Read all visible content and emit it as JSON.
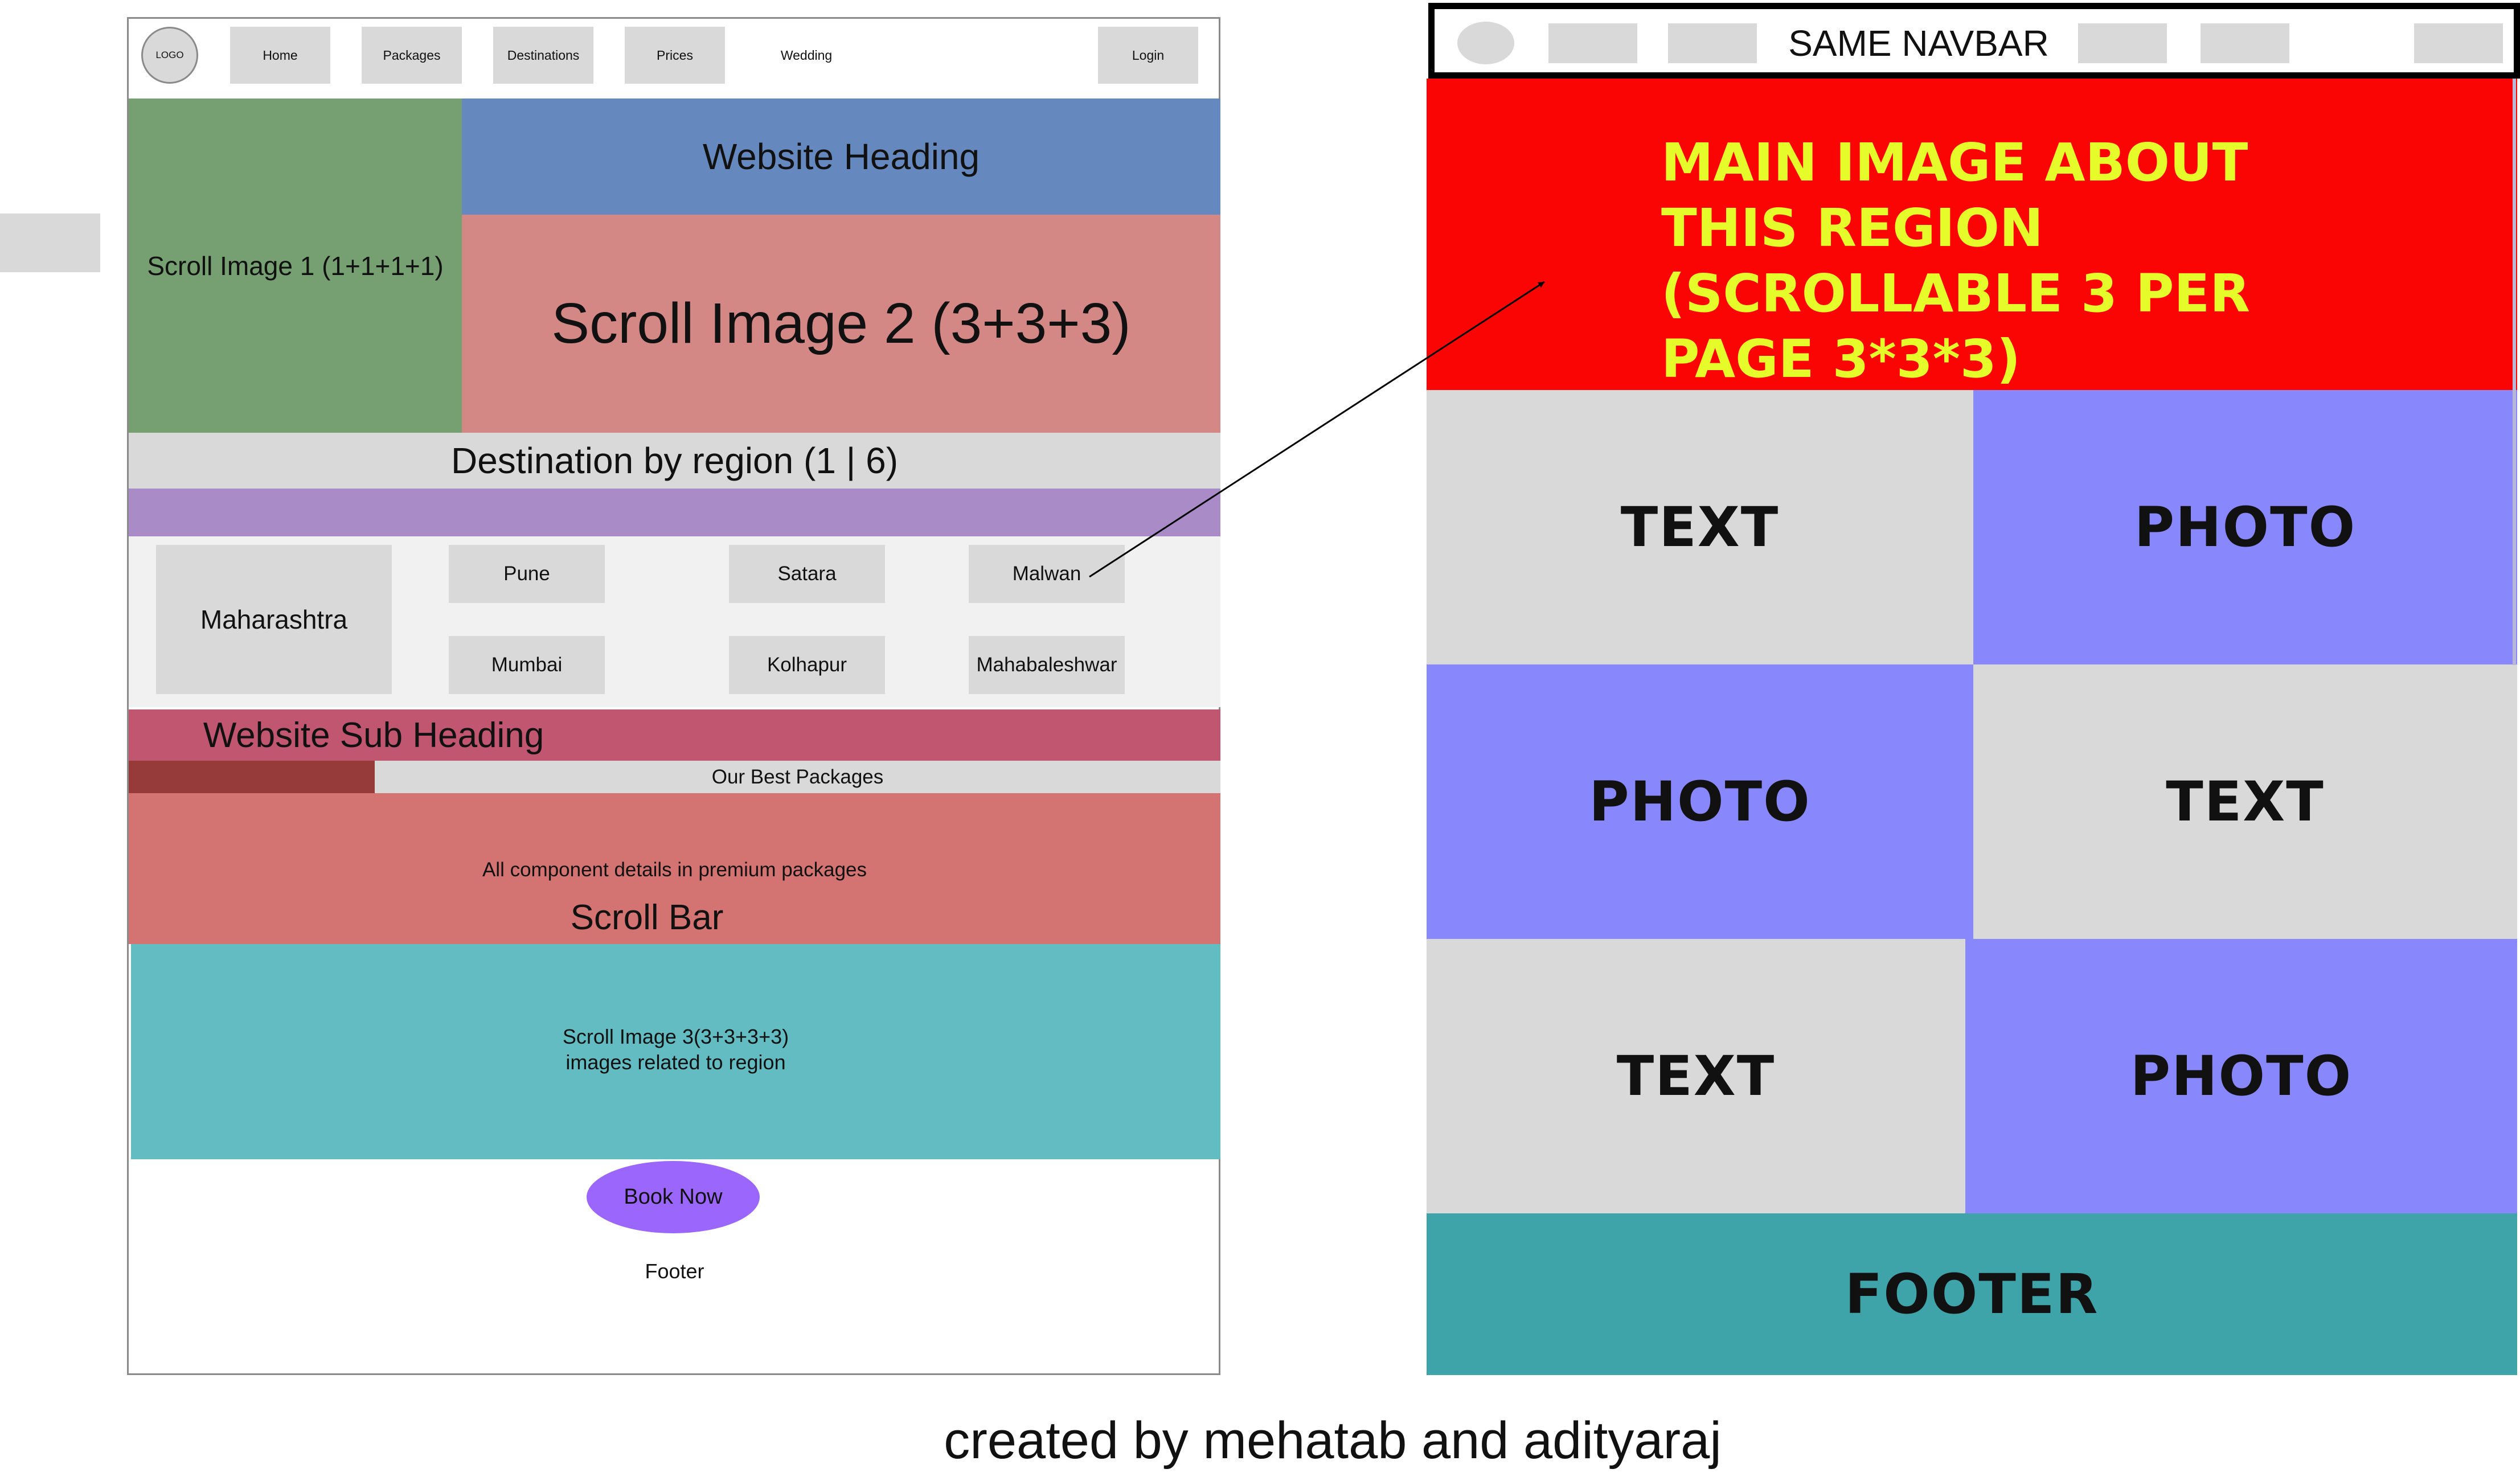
{
  "left_wireframe": {
    "navbar": {
      "logo": "LOGO",
      "items": [
        "Home",
        "Packages",
        "Destinations",
        "Prices",
        "Wedding"
      ],
      "login": "Login"
    },
    "scroll_image_1": "Scroll Image 1 (1+1+1+1)",
    "website_heading": "Website Heading",
    "scroll_image_2": "Scroll Image 2 (3+3+3)",
    "destination_by_region": "Destination by region (1 | 6)",
    "region": {
      "state": "Maharashtra",
      "cities": [
        "Pune",
        "Satara",
        "Malwan",
        "Mumbai",
        "Kolhapur",
        "Mahabaleshwar"
      ]
    },
    "sub_heading": "Website Sub Heading",
    "best_packages": "Our Best Packages",
    "premium_details": "All component details in premium packages",
    "scroll_bar": "Scroll Bar",
    "scroll_image_3_line1": "Scroll Image 3(3+3+3+3)",
    "scroll_image_3_line2": "images related to region",
    "book_now": "Book Now",
    "footer": "Footer"
  },
  "right_wireframe": {
    "navbar_label": "SAME NAVBAR",
    "main_image_text": "MAIN IMAGE ABOUT THIS REGION (SCROLLABLE 3 PER PAGE 3*3*3)",
    "tiles": [
      "TEXT",
      "PHOTO",
      "PHOTO",
      "TEXT",
      "TEXT",
      "PHOTO"
    ],
    "footer": "FOOTER"
  },
  "credit": "created by mehatab and adityaraj",
  "colors": {
    "green": "#76a071",
    "blue": "#6589bf",
    "salmon": "#d38886",
    "purple": "#a98bc7",
    "pink": "#c0566f",
    "dark_red": "#963a3a",
    "coral": "#d47472",
    "teal": "#62bcc1",
    "violet_button": "#9b66fb",
    "red": "#fb0404",
    "yellow": "#e5fb2a",
    "periwinkle": "#8887fb",
    "footer_teal": "#3fa3aa"
  }
}
